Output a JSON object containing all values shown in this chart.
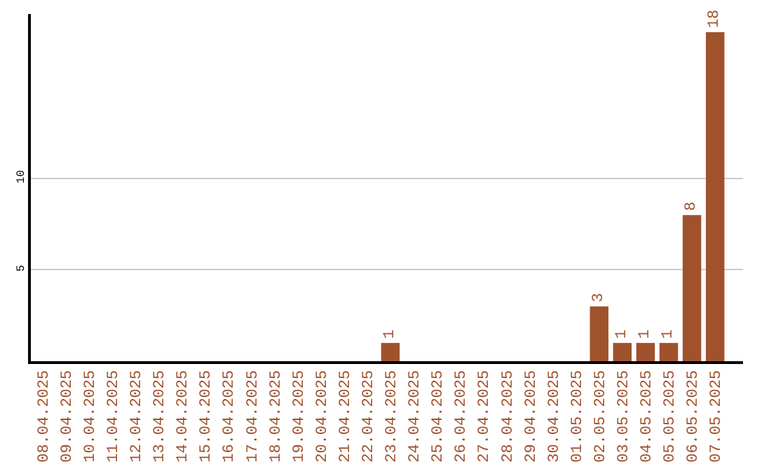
{
  "chart_data": {
    "type": "bar",
    "categories": [
      "08.04.2025",
      "09.04.2025",
      "10.04.2025",
      "11.04.2025",
      "12.04.2025",
      "13.04.2025",
      "14.04.2025",
      "15.04.2025",
      "16.04.2025",
      "17.04.2025",
      "18.04.2025",
      "19.04.2025",
      "20.04.2025",
      "21.04.2025",
      "22.04.2025",
      "23.04.2025",
      "24.04.2025",
      "25.04.2025",
      "26.04.2025",
      "27.04.2025",
      "28.04.2025",
      "29.04.2025",
      "30.04.2025",
      "01.05.2025",
      "02.05.2025",
      "03.05.2025",
      "04.05.2025",
      "05.05.2025",
      "06.05.2025",
      "07.05.2025"
    ],
    "values": [
      0,
      0,
      0,
      0,
      0,
      0,
      0,
      0,
      0,
      0,
      0,
      0,
      0,
      0,
      0,
      1,
      0,
      0,
      0,
      0,
      0,
      0,
      0,
      0,
      3,
      1,
      1,
      1,
      8,
      18
    ],
    "value_labels": [
      null,
      null,
      null,
      null,
      null,
      null,
      null,
      null,
      null,
      null,
      null,
      null,
      null,
      null,
      null,
      "1",
      null,
      null,
      null,
      null,
      null,
      null,
      null,
      null,
      "3",
      "1",
      "1",
      "1",
      "8",
      "18"
    ],
    "color": "#a0522d",
    "ylim": [
      0,
      19
    ],
    "yticks": [
      5,
      10
    ],
    "grid": "y"
  }
}
